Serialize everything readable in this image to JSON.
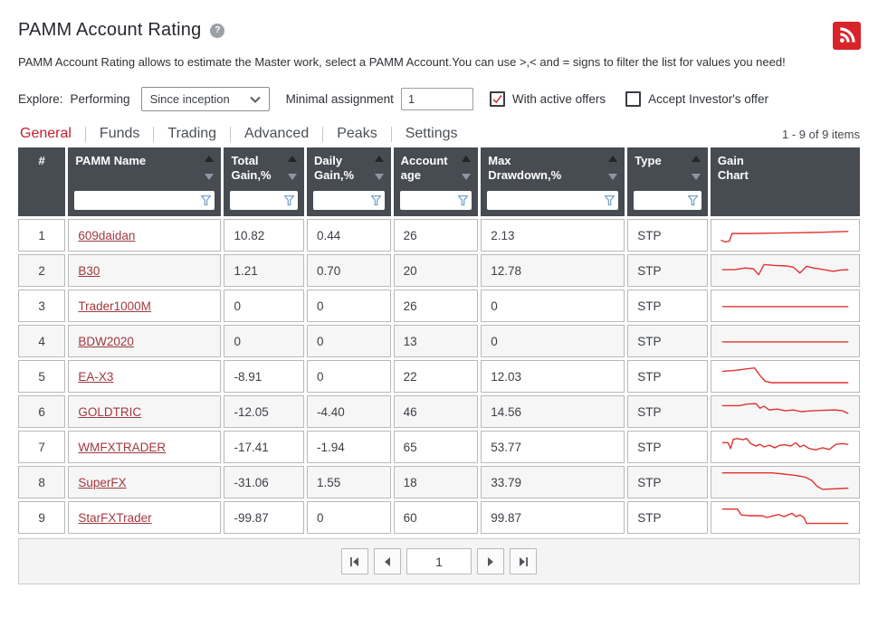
{
  "colors": {
    "accent_red": "#c21f2f",
    "link_red": "#a0393f",
    "sparkline_red": "#e0332e",
    "header_bg": "#474c53",
    "funnel_blue": "#6d9ec9",
    "rss_red": "#d8232a",
    "check_red": "#d12a2a"
  },
  "icons": {
    "rss": "rss-icon",
    "help": "help-icon",
    "chevron": "chevron-down-icon",
    "checkmark": "checkmark-icon",
    "funnel": "filter-funnel-icon",
    "sort_up": "sort-ascending-icon",
    "sort_down": "sort-descending-icon"
  },
  "header": {
    "title": "PAMM Account Rating",
    "help_icon": "?",
    "description": "PAMM Account Rating allows to estimate the Master work, select a PAMM Account.You can use >,< and = signs to filter the list for values you need!"
  },
  "filters": {
    "explore_label": "Explore:",
    "performing_label": "Performing",
    "period_value": "Since inception",
    "minimal_assignment_label": "Minimal assignment",
    "minimal_assignment_value": "1",
    "with_active_offers_label": "With active offers",
    "with_active_offers_checked": true,
    "accept_investors_offer_label": "Accept Investor's offer",
    "accept_investors_offer_checked": false
  },
  "tabs": [
    {
      "label": "General",
      "active": true
    },
    {
      "label": "Funds",
      "active": false
    },
    {
      "label": "Trading",
      "active": false
    },
    {
      "label": "Advanced",
      "active": false
    },
    {
      "label": "Peaks",
      "active": false
    },
    {
      "label": "Settings",
      "active": false
    }
  ],
  "items_count": "1 - 9 of 9 items",
  "table": {
    "columns": [
      {
        "label": "#",
        "sortable": false,
        "filterable": false
      },
      {
        "label": "PAMM Name",
        "sortable": true,
        "filterable": true
      },
      {
        "label": "Total\nGain,%",
        "sortable": true,
        "filterable": true
      },
      {
        "label": "Daily\nGain,%",
        "sortable": true,
        "filterable": true
      },
      {
        "label": "Account\nage",
        "sortable": true,
        "filterable": true
      },
      {
        "label": "Max\nDrawdown,%",
        "sortable": true,
        "filterable": true
      },
      {
        "label": "Type",
        "sortable": true,
        "filterable": true
      },
      {
        "label": "Gain\nChart",
        "sortable": false,
        "filterable": false
      }
    ],
    "rows": [
      {
        "index": "1",
        "name": "609daidan",
        "total_gain": "10.82",
        "daily_gain": "0.44",
        "account_age": "26",
        "max_drawdown": "2.13",
        "type": "STP",
        "sparkline": [
          [
            2,
            21
          ],
          [
            5,
            23
          ],
          [
            8,
            22
          ],
          [
            10,
            13
          ],
          [
            22,
            13
          ],
          [
            42,
            12.5
          ],
          [
            62,
            12
          ],
          [
            78,
            11.5
          ],
          [
            97,
            10.5
          ]
        ]
      },
      {
        "index": "2",
        "name": "B30",
        "total_gain": "1.21",
        "daily_gain": "0.70",
        "account_age": "20",
        "max_drawdown": "12.78",
        "type": "STP",
        "sparkline": [
          [
            3,
            14
          ],
          [
            12,
            14
          ],
          [
            20,
            12
          ],
          [
            26,
            13
          ],
          [
            30,
            20
          ],
          [
            34,
            8
          ],
          [
            42,
            9
          ],
          [
            50,
            9.5
          ],
          [
            56,
            11
          ],
          [
            61,
            18
          ],
          [
            66,
            10
          ],
          [
            71,
            12
          ],
          [
            79,
            14
          ],
          [
            86,
            16
          ],
          [
            91,
            14.5
          ],
          [
            97,
            14
          ]
        ]
      },
      {
        "index": "3",
        "name": "Trader1000M",
        "total_gain": "0",
        "daily_gain": "0",
        "account_age": "26",
        "max_drawdown": "0",
        "type": "STP",
        "sparkline": [
          [
            3,
            16
          ],
          [
            97,
            16
          ]
        ]
      },
      {
        "index": "4",
        "name": "BDW2020",
        "total_gain": "0",
        "daily_gain": "0",
        "account_age": "13",
        "max_drawdown": "0",
        "type": "STP",
        "sparkline": [
          [
            3,
            16
          ],
          [
            97,
            16
          ]
        ]
      },
      {
        "index": "5",
        "name": "EA-X3",
        "total_gain": "-8.91",
        "daily_gain": "0",
        "account_age": "22",
        "max_drawdown": "12.03",
        "type": "STP",
        "sparkline": [
          [
            3,
            9
          ],
          [
            12,
            8
          ],
          [
            22,
            6
          ],
          [
            27,
            5
          ],
          [
            31,
            14
          ],
          [
            35,
            21
          ],
          [
            40,
            22.5
          ],
          [
            97,
            22.5
          ]
        ]
      },
      {
        "index": "6",
        "name": "GOLDTRIC",
        "total_gain": "-12.05",
        "daily_gain": "-4.40",
        "account_age": "46",
        "max_drawdown": "14.56",
        "type": "STP",
        "sparkline": [
          [
            3,
            8
          ],
          [
            15,
            8
          ],
          [
            22,
            6
          ],
          [
            28,
            5.5
          ],
          [
            31,
            11
          ],
          [
            34,
            8.5
          ],
          [
            38,
            13
          ],
          [
            44,
            12
          ],
          [
            50,
            14
          ],
          [
            56,
            13
          ],
          [
            62,
            15
          ],
          [
            70,
            14
          ],
          [
            78,
            13.5
          ],
          [
            88,
            13
          ],
          [
            93,
            14
          ],
          [
            97,
            17
          ]
        ]
      },
      {
        "index": "7",
        "name": "WMFXTRADER",
        "total_gain": "-17.41",
        "daily_gain": "-1.94",
        "account_age": "65",
        "max_drawdown": "53.77",
        "type": "STP",
        "sparkline": [
          [
            3,
            10
          ],
          [
            7,
            10
          ],
          [
            9,
            17
          ],
          [
            11,
            6
          ],
          [
            14,
            5
          ],
          [
            18,
            6.5
          ],
          [
            21,
            5
          ],
          [
            24,
            11
          ],
          [
            28,
            14
          ],
          [
            31,
            12
          ],
          [
            34,
            15
          ],
          [
            38,
            13
          ],
          [
            42,
            16
          ],
          [
            46,
            13
          ],
          [
            50,
            12.5
          ],
          [
            54,
            14
          ],
          [
            58,
            10
          ],
          [
            61,
            15
          ],
          [
            64,
            13
          ],
          [
            68,
            17
          ],
          [
            73,
            18.5
          ],
          [
            78,
            16
          ],
          [
            83,
            18
          ],
          [
            88,
            12
          ],
          [
            93,
            11
          ],
          [
            97,
            12
          ]
        ]
      },
      {
        "index": "8",
        "name": "SuperFX",
        "total_gain": "-31.06",
        "daily_gain": "1.55",
        "account_age": "18",
        "max_drawdown": "33.79",
        "type": "STP",
        "sparkline": [
          [
            3,
            4
          ],
          [
            40,
            4
          ],
          [
            50,
            5.5
          ],
          [
            58,
            7
          ],
          [
            65,
            9
          ],
          [
            70,
            13
          ],
          [
            74,
            20
          ],
          [
            78,
            23.5
          ],
          [
            85,
            23
          ],
          [
            92,
            22.5
          ],
          [
            97,
            22
          ]
        ]
      },
      {
        "index": "9",
        "name": "StarFXTrader",
        "total_gain": "-99.87",
        "daily_gain": "0",
        "account_age": "60",
        "max_drawdown": "99.87",
        "type": "STP",
        "sparkline": [
          [
            3,
            5
          ],
          [
            14,
            5
          ],
          [
            17,
            12
          ],
          [
            24,
            13
          ],
          [
            33,
            13
          ],
          [
            36,
            15
          ],
          [
            40,
            13.5
          ],
          [
            45,
            11.5
          ],
          [
            49,
            14
          ],
          [
            52,
            12
          ],
          [
            55,
            10
          ],
          [
            58,
            14
          ],
          [
            61,
            12
          ],
          [
            64,
            15
          ],
          [
            66,
            22
          ],
          [
            75,
            22
          ],
          [
            97,
            22
          ]
        ]
      }
    ]
  },
  "pagination": {
    "page_value": "1",
    "first_icon": "first-page-icon",
    "prev_icon": "previous-page-icon",
    "next_icon": "next-page-icon",
    "last_icon": "last-page-icon"
  }
}
